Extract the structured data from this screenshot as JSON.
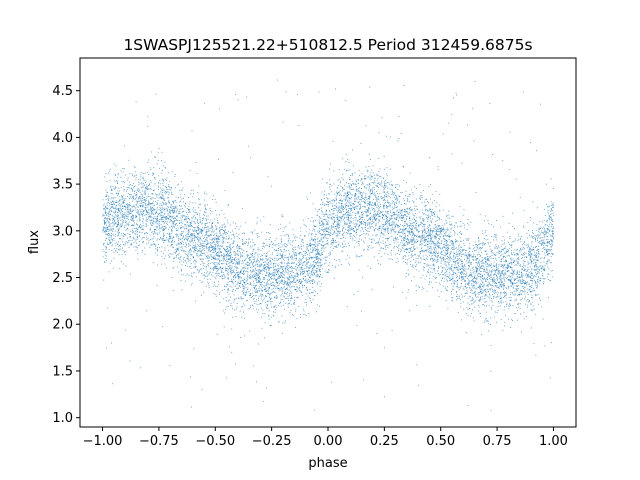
{
  "chart_data": {
    "type": "scatter",
    "title": "1SWASPJ125521.22+510812.5 Period 312459.6875s",
    "xlabel": "phase",
    "ylabel": "flux",
    "xlim": [
      -1.1,
      1.1
    ],
    "ylim": [
      0.9,
      4.85
    ],
    "xticks": [
      -1.0,
      -0.75,
      -0.5,
      -0.25,
      0.0,
      0.25,
      0.5,
      0.75,
      1.0
    ],
    "xtick_labels": [
      "−1.00",
      "−0.75",
      "−0.50",
      "−0.25",
      "0.00",
      "0.25",
      "0.50",
      "0.75",
      "1.00"
    ],
    "yticks": [
      1.0,
      1.5,
      2.0,
      2.5,
      3.0,
      3.5,
      4.0,
      4.5
    ],
    "ytick_labels": [
      "1.0",
      "1.5",
      "2.0",
      "2.5",
      "3.0",
      "3.5",
      "4.0",
      "4.5"
    ],
    "grid": false,
    "point_color": "#1f77b4",
    "series": [
      {
        "x_range": [
          -1.0,
          1.0
        ],
        "profile": {
          "phase": [
            0.0,
            0.05,
            0.1,
            0.15,
            0.2,
            0.25,
            0.3,
            0.35,
            0.4,
            0.45,
            0.5,
            0.55,
            0.6,
            0.65,
            0.7,
            0.75,
            0.8,
            0.85,
            0.9,
            0.95,
            1.0
          ],
          "mean_flux": [
            3.05,
            3.15,
            3.2,
            3.22,
            3.25,
            3.2,
            3.1,
            3.0,
            2.95,
            2.9,
            2.8,
            2.7,
            2.6,
            2.55,
            2.55,
            2.5,
            2.6,
            2.55,
            2.6,
            2.75,
            3.05
          ]
        },
        "scatter_sigma": 0.22,
        "outlier_range": [
          1.05,
          4.65
        ]
      }
    ]
  }
}
